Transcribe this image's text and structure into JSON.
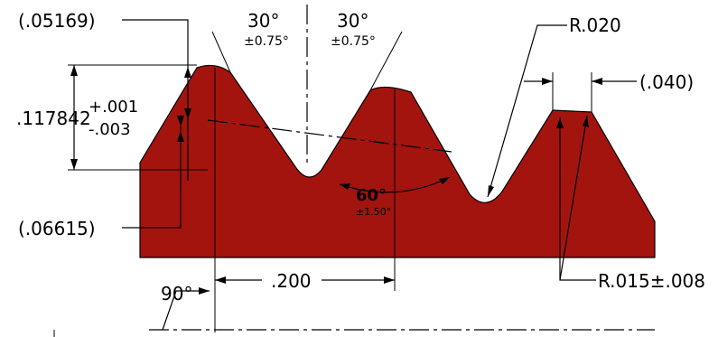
{
  "part": {
    "fill_color": "#a3140f",
    "outline_color": "#000000"
  },
  "dims": {
    "d_05169": "(.05169)",
    "d_06615": "(.06615)",
    "d_117842": ".117842",
    "tol_plus": "+.001",
    "tol_minus": "-.003",
    "angle_left": "30°",
    "angle_left_tol": "±0.75°",
    "angle_right": "30°",
    "angle_right_tol": "±0.75°",
    "radius_top": "R.020",
    "width_040": "(.040)",
    "angle_60": "60°",
    "angle_60_tol": "±1.50°",
    "pitch_200": ".200",
    "angle_90": "90°",
    "radius_bottom": "R.015±.008"
  }
}
